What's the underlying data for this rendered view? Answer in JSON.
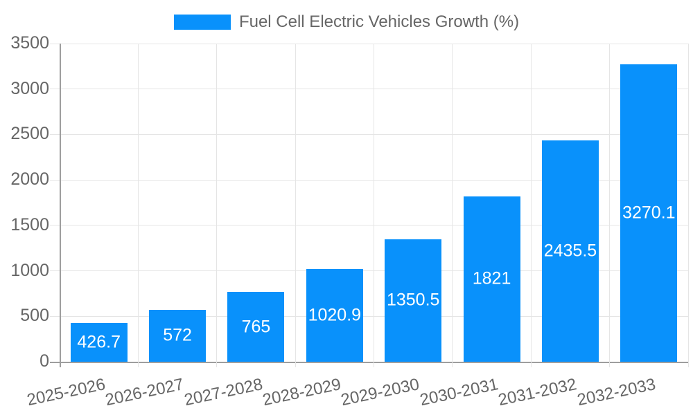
{
  "chart_data": {
    "type": "bar",
    "title": "Fuel Cell Electric Vehicles Growth (%)",
    "categories": [
      "2025-2026",
      "2026-2027",
      "2027-2028",
      "2028-2029",
      "2029-2030",
      "2030-2031",
      "2031-2032",
      "2032-2033"
    ],
    "values": [
      426.7,
      572,
      765,
      1020.9,
      1350.5,
      1821,
      2435.5,
      3270.1
    ],
    "xlabel": "",
    "ylabel": "",
    "ylim": [
      0,
      3500
    ],
    "y_ticks": [
      0,
      500,
      1000,
      1500,
      2000,
      2500,
      3000,
      3500
    ],
    "grid": "on",
    "legend_position": "top",
    "value_labels": "centered-in-bar",
    "colors": {
      "bar": "#0991FB",
      "gridline": "#E5E5E5",
      "axis_line": "#9E9E9E",
      "tick_text": "#666666",
      "legend_text": "#666666",
      "value_label_text": "#FFFFFF",
      "background": "#FFFFFF"
    }
  }
}
